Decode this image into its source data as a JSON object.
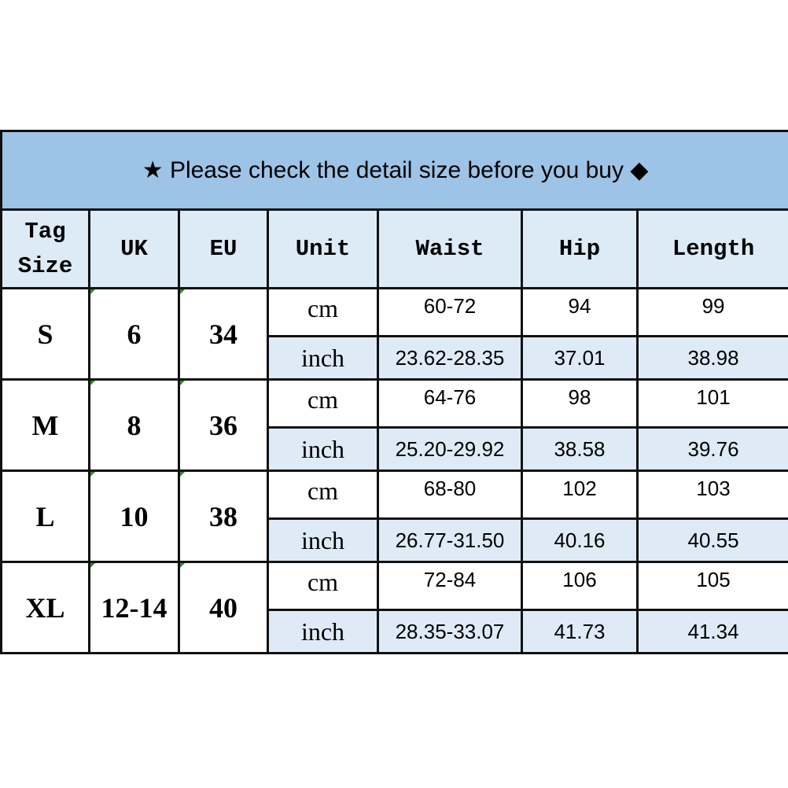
{
  "title": {
    "star_icon": "★",
    "text": "Please check the detail size before you buy",
    "diamond_icon": "◆"
  },
  "headers": [
    "Tag\nSize",
    "UK",
    "EU",
    "Unit",
    "Waist",
    "Hip",
    "Length"
  ],
  "colors": {
    "title_bg": "#9dc3e6",
    "header_bg": "#ddebf7",
    "inch_row_bg": "#deebf7"
  },
  "rows": [
    {
      "tag": "S",
      "uk": "6",
      "eu": "34",
      "cm": {
        "unit": "cm",
        "waist": "60-72",
        "hip": "94",
        "length": "99"
      },
      "inch": {
        "unit": "inch",
        "waist": "23.62-28.35",
        "hip": "37.01",
        "length": "38.98"
      }
    },
    {
      "tag": "M",
      "uk": "8",
      "eu": "36",
      "cm": {
        "unit": "cm",
        "waist": "64-76",
        "hip": "98",
        "length": "101"
      },
      "inch": {
        "unit": "inch",
        "waist": "25.20-29.92",
        "hip": "38.58",
        "length": "39.76"
      }
    },
    {
      "tag": "L",
      "uk": "10",
      "eu": "38",
      "cm": {
        "unit": "cm",
        "waist": "68-80",
        "hip": "102",
        "length": "103"
      },
      "inch": {
        "unit": "inch",
        "waist": "26.77-31.50",
        "hip": "40.16",
        "length": "40.55"
      }
    },
    {
      "tag": "XL",
      "uk": "12-14",
      "eu": "40",
      "cm": {
        "unit": "cm",
        "waist": "72-84",
        "hip": "106",
        "length": "105"
      },
      "inch": {
        "unit": "inch",
        "waist": "28.35-33.07",
        "hip": "41.73",
        "length": "41.34"
      }
    }
  ]
}
